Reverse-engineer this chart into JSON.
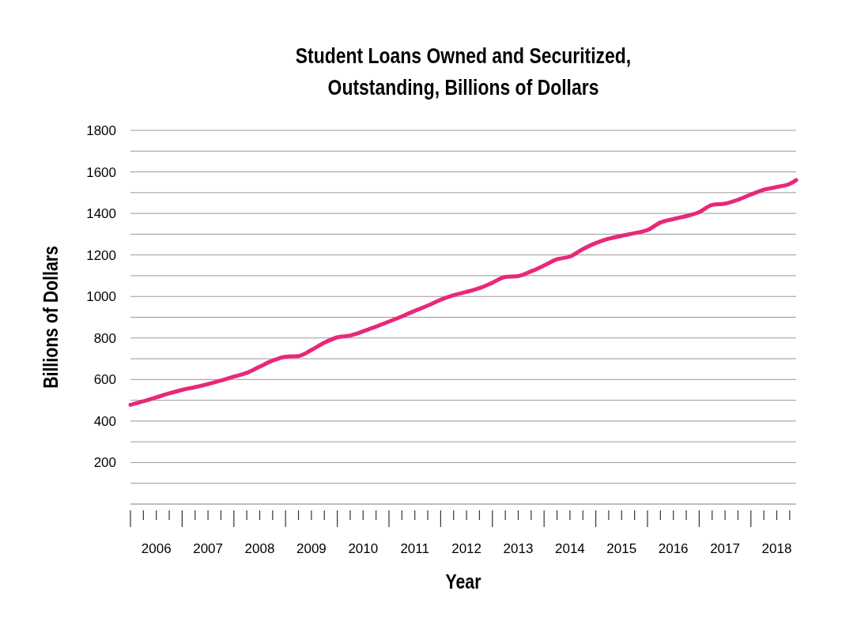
{
  "chart_data": {
    "type": "line",
    "title": "Student Loans Owned and Securitized,\nOutstanding, Billions of Dollars",
    "xlabel": "Year",
    "ylabel": "Billions of Dollars",
    "x": [
      2006,
      2006.25,
      2006.5,
      2006.75,
      2007,
      2007.25,
      2007.5,
      2007.75,
      2008,
      2008.25,
      2008.5,
      2008.75,
      2009,
      2009.25,
      2009.5,
      2009.75,
      2010,
      2010.25,
      2010.5,
      2010.75,
      2011,
      2011.25,
      2011.5,
      2011.75,
      2012,
      2012.25,
      2012.5,
      2012.75,
      2013,
      2013.25,
      2013.5,
      2013.75,
      2014,
      2014.25,
      2014.5,
      2014.75,
      2015,
      2015.25,
      2015.5,
      2015.75,
      2016,
      2016.25,
      2016.5,
      2016.75,
      2017,
      2017.25,
      2017.5,
      2017.75,
      2018,
      2018.25,
      2018.5,
      2018.75,
      2018.875
    ],
    "series": [
      {
        "color": "#e8287a",
        "values": [
          478,
          495,
          514,
          533,
          550,
          563,
          578,
          595,
          614,
          632,
          662,
          691,
          710,
          713,
          742,
          777,
          803,
          812,
          832,
          855,
          879,
          904,
          931,
          956,
          984,
          1006,
          1022,
          1040,
          1066,
          1094,
          1098,
          1121,
          1149,
          1179,
          1192,
          1228,
          1257,
          1278,
          1292,
          1305,
          1320,
          1356,
          1373,
          1387,
          1406,
          1441,
          1447,
          1466,
          1491,
          1514,
          1527,
          1542,
          1561
        ]
      }
    ],
    "xlim": [
      2006,
      2018.875
    ],
    "xticks": [
      {
        "value": 2006,
        "label": null
      },
      {
        "value": 2006.25,
        "label": null
      },
      {
        "value": 2006.5,
        "label": "2006"
      },
      {
        "value": 2006.75,
        "label": null
      },
      {
        "value": 2007,
        "label": null
      },
      {
        "value": 2007.25,
        "label": null
      },
      {
        "value": 2007.5,
        "label": "2007"
      },
      {
        "value": 2007.75,
        "label": null
      },
      {
        "value": 2008,
        "label": null
      },
      {
        "value": 2008.25,
        "label": null
      },
      {
        "value": 2008.5,
        "label": "2008"
      },
      {
        "value": 2008.75,
        "label": null
      },
      {
        "value": 2009,
        "label": null
      },
      {
        "value": 2009.25,
        "label": null
      },
      {
        "value": 2009.5,
        "label": "2009"
      },
      {
        "value": 2009.75,
        "label": null
      },
      {
        "value": 2010,
        "label": null
      },
      {
        "value": 2010.25,
        "label": null
      },
      {
        "value": 2010.5,
        "label": "2010"
      },
      {
        "value": 2010.75,
        "label": null
      },
      {
        "value": 2011,
        "label": null
      },
      {
        "value": 2011.25,
        "label": null
      },
      {
        "value": 2011.5,
        "label": "2011"
      },
      {
        "value": 2011.75,
        "label": null
      },
      {
        "value": 2012,
        "label": null
      },
      {
        "value": 2012.25,
        "label": null
      },
      {
        "value": 2012.5,
        "label": "2012"
      },
      {
        "value": 2012.75,
        "label": null
      },
      {
        "value": 2013,
        "label": null
      },
      {
        "value": 2013.25,
        "label": null
      },
      {
        "value": 2013.5,
        "label": "2013"
      },
      {
        "value": 2013.75,
        "label": null
      },
      {
        "value": 2014,
        "label": null
      },
      {
        "value": 2014.25,
        "label": null
      },
      {
        "value": 2014.5,
        "label": "2014"
      },
      {
        "value": 2014.75,
        "label": null
      },
      {
        "value": 2015,
        "label": null
      },
      {
        "value": 2015.25,
        "label": null
      },
      {
        "value": 2015.5,
        "label": "2015"
      },
      {
        "value": 2015.75,
        "label": null
      },
      {
        "value": 2016,
        "label": null
      },
      {
        "value": 2016.25,
        "label": null
      },
      {
        "value": 2016.5,
        "label": "2016"
      },
      {
        "value": 2016.75,
        "label": null
      },
      {
        "value": 2017,
        "label": null
      },
      {
        "value": 2017.25,
        "label": null
      },
      {
        "value": 2017.5,
        "label": "2017"
      },
      {
        "value": 2017.75,
        "label": null
      },
      {
        "value": 2018,
        "label": null
      },
      {
        "value": 2018.25,
        "label": null
      },
      {
        "value": 2018.5,
        "label": "2018"
      },
      {
        "value": 2018.75,
        "label": null
      }
    ],
    "ylim": [
      0,
      1800
    ],
    "yticks": [
      {
        "value": 0,
        "label": null
      },
      {
        "value": 100,
        "label": null
      },
      200,
      {
        "value": 300,
        "label": null
      },
      400,
      {
        "value": 500,
        "label": null
      },
      600,
      {
        "value": 700,
        "label": null
      },
      800,
      {
        "value": 900,
        "label": null
      },
      1000,
      {
        "value": 1100,
        "label": null
      },
      1200,
      {
        "value": 1300,
        "label": null
      },
      1400,
      {
        "value": 1500,
        "label": null
      },
      1600,
      {
        "value": 1700,
        "label": null
      },
      1800
    ],
    "grid": "y",
    "marker": "none",
    "line_style": "solid"
  }
}
